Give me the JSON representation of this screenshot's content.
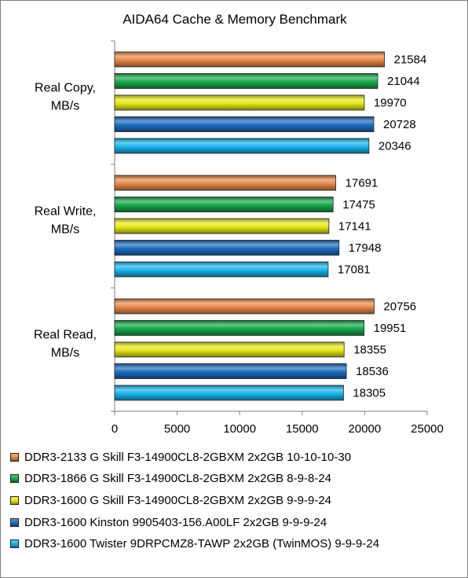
{
  "chart_data": {
    "type": "bar",
    "orientation": "horizontal",
    "title": "AIDA64 Cache & Memory Benchmark",
    "categories": [
      "Real Copy, MB/s",
      "Real Write, MB/s",
      "Real Read, MB/s"
    ],
    "category_lines": [
      [
        "Real Copy,",
        "MB/s"
      ],
      [
        "Real Write,",
        "MB/s"
      ],
      [
        "Real Read,",
        "MB/s"
      ]
    ],
    "series": [
      {
        "name": "DDR3-2133 G Skill F3-14900CL8-2GBXM 2x2GB 10-10-10-30",
        "color": "#e8894a",
        "values": [
          21584,
          17691,
          20756
        ]
      },
      {
        "name": "DDR3-1866 G Skill F3-14900CL8-2GBXM 2x2GB 8-9-8-24",
        "color": "#17a84a",
        "values": [
          21044,
          17475,
          19951
        ]
      },
      {
        "name": "DDR3-1600 G Skill F3-14900CL8-2GBXM 2x2GB 9-9-9-24",
        "color": "#e6e81a",
        "values": [
          19970,
          17141,
          18355
        ]
      },
      {
        "name": "DDR3-1600 Kinston 9905403-156.A00LF 2x2GB 9-9-9-24",
        "color": "#1c6cbf",
        "values": [
          20728,
          17948,
          18536
        ]
      },
      {
        "name": "DDR3-1600 Twister 9DRPCMZ8-TAWP 2x2GB (TwinMOS) 9-9-9-24",
        "color": "#1ab4ec",
        "values": [
          20346,
          17081,
          18305
        ]
      }
    ],
    "xlim": [
      0,
      25000
    ],
    "xticks": [
      0,
      5000,
      10000,
      15000,
      20000,
      25000
    ],
    "grid": false,
    "legend_position": "bottom"
  }
}
